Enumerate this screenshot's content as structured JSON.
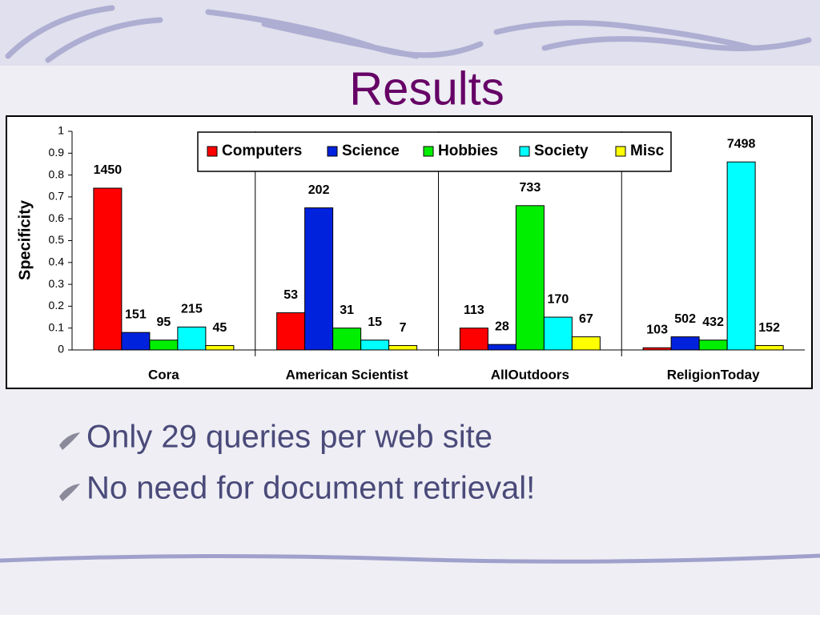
{
  "slide": {
    "title": "Results",
    "bullets": [
      "Only 29 queries per web site",
      "No need for document retrieval!"
    ]
  },
  "chart_data": {
    "type": "bar",
    "ylabel": "Specificity",
    "categories": [
      "Cora",
      "American Scientist",
      "AllOutdoors",
      "ReligionToday"
    ],
    "ylim": [
      0,
      1
    ],
    "yticks": [
      0,
      0.1,
      0.2,
      0.3,
      0.4,
      0.5,
      0.6,
      0.7,
      0.8,
      0.9,
      1
    ],
    "legend": "top",
    "series": [
      {
        "name": "Computers",
        "color": "#ff0000",
        "values": [
          0.74,
          0.17,
          0.1,
          0.01
        ],
        "counts": [
          1450,
          53,
          113,
          103
        ]
      },
      {
        "name": "Science",
        "color": "#0022dd",
        "values": [
          0.08,
          0.65,
          0.025,
          0.06
        ],
        "counts": [
          151,
          202,
          28,
          502
        ]
      },
      {
        "name": "Hobbies",
        "color": "#00ee00",
        "values": [
          0.045,
          0.1,
          0.66,
          0.045
        ],
        "counts": [
          95,
          31,
          733,
          432
        ]
      },
      {
        "name": "Society",
        "color": "#00ffff",
        "values": [
          0.105,
          0.045,
          0.15,
          0.86
        ],
        "counts": [
          215,
          15,
          170,
          7498
        ]
      },
      {
        "name": "Misc",
        "color": "#ffff00",
        "values": [
          0.02,
          0.02,
          0.06,
          0.02
        ],
        "counts": [
          45,
          7,
          67,
          152
        ]
      }
    ]
  }
}
